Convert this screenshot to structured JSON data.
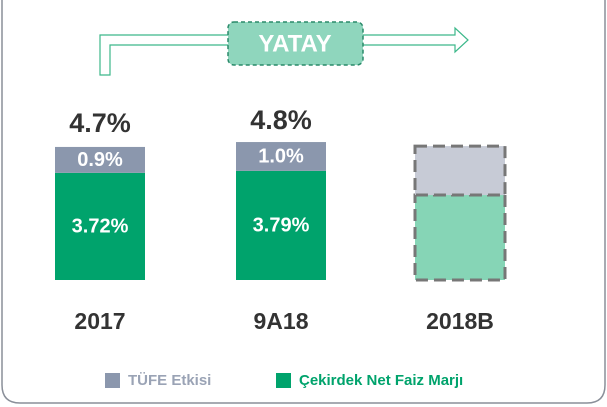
{
  "chart_data": {
    "type": "stacked_bar",
    "annotation": "YATAY",
    "categories": [
      "2017",
      "9A18",
      "2018B"
    ],
    "series": [
      {
        "name": "Çekirdek Net Faiz Marjı",
        "color": "#00a36c",
        "values": [
          3.72,
          3.79,
          2.95
        ],
        "value_labels": [
          "3.72%",
          "3.79%",
          null
        ]
      },
      {
        "name": "TÜFE Etkisi",
        "color": "#8b97ad",
        "values": [
          0.9,
          1.0,
          1.7
        ],
        "value_labels": [
          "0.9%",
          "1.0%",
          null
        ]
      }
    ],
    "totals": [
      4.7,
      4.8,
      null
    ],
    "total_labels": [
      "4.7%",
      "4.8%",
      null
    ],
    "dashed": [
      false,
      false,
      true
    ],
    "ylim": [
      0,
      5.5
    ]
  }
}
